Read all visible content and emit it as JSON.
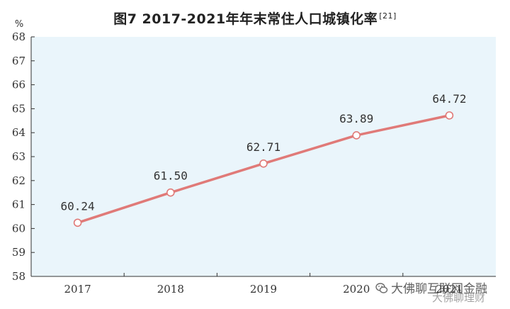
{
  "chart_data": {
    "type": "line",
    "title": "图7   2017-2021年年末常住人口城镇化率",
    "title_note": "[21]",
    "ylabel": "%",
    "xlabel": "",
    "categories": [
      "2017",
      "2018",
      "2019",
      "2020",
      "2021"
    ],
    "series": [
      {
        "values": [
          60.24,
          61.5,
          62.71,
          63.89,
          64.72
        ],
        "labels": [
          "60.24",
          "61.50",
          "62.71",
          "63.89",
          "64.72"
        ]
      }
    ],
    "ylim": [
      58,
      68
    ],
    "yticks": [
      58,
      59,
      60,
      61,
      62,
      63,
      64,
      65,
      66,
      67,
      68
    ],
    "grid": false,
    "legend": "none",
    "colors": {
      "line": "#e07a78",
      "plot_background": "#eaf5fb",
      "axis": "#333333",
      "text": "#333333"
    }
  },
  "watermark": {
    "line1": "大佛聊互联网金融",
    "line2": "大佛聊理财",
    "icon": "wechat-icon"
  }
}
